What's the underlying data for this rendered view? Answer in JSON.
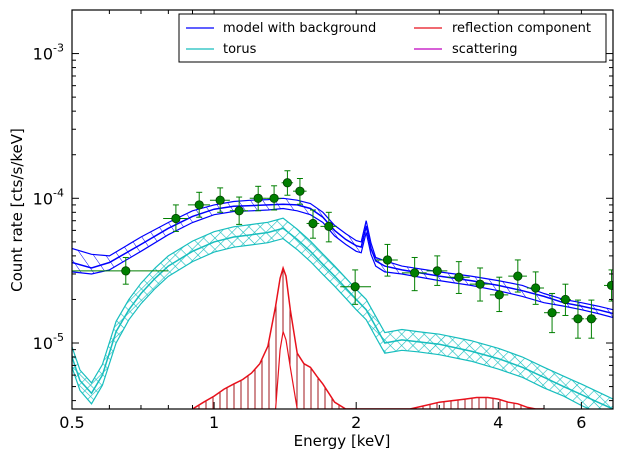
{
  "chart_data": {
    "type": "line",
    "title": "",
    "xlabel": "Energy [keV]",
    "ylabel": "Count rate [cts/s/keV]",
    "xscale": "log",
    "yscale": "log",
    "xlim": [
      0.5,
      7.0
    ],
    "ylim": [
      3.5e-06,
      0.002
    ],
    "grid": false,
    "legend_position": "top-right",
    "x_ticks": [
      {
        "value": 0.5,
        "label": "0.5"
      },
      {
        "value": 1,
        "label": "1"
      },
      {
        "value": 2,
        "label": "2"
      },
      {
        "value": 4,
        "label": "4"
      },
      {
        "value": 6,
        "label": "6"
      }
    ],
    "y_ticks": [
      {
        "value": 1e-05,
        "base": "10",
        "exp": "-5"
      },
      {
        "value": 0.0001,
        "base": "10",
        "exp": "-4"
      },
      {
        "value": 0.001,
        "base": "10",
        "exp": "-3"
      }
    ],
    "series": [
      {
        "name": "model with background",
        "color": "#0000ff",
        "hatch": "diagonal",
        "x": [
          0.5,
          0.55,
          0.6,
          0.7,
          0.8,
          0.9,
          1.0,
          1.1,
          1.2,
          1.3,
          1.4,
          1.5,
          1.6,
          1.7,
          1.8,
          1.9,
          2.0,
          2.05,
          2.1,
          2.15,
          2.2,
          2.3,
          2.5,
          3.0,
          3.5,
          4.0,
          4.5,
          5.0,
          5.5,
          6.0,
          6.5,
          7.0
        ],
        "y": [
          3.6e-05,
          3.3e-05,
          3.6e-05,
          4.8e-05,
          6.2e-05,
          7.5e-05,
          8.4e-05,
          8.8e-05,
          8.9e-05,
          9e-05,
          9.1e-05,
          9e-05,
          8.5e-05,
          7.4e-05,
          6e-05,
          5.2e-05,
          4.7e-05,
          4.6e-05,
          6.4e-05,
          4.5e-05,
          3.7e-05,
          3.4e-05,
          3.2e-05,
          2.9e-05,
          2.7e-05,
          2.5e-05,
          2.3e-05,
          2.1e-05,
          1.9e-05,
          1.8e-05,
          1.7e-05,
          1.6e-05
        ],
        "y_low": [
          3.1e-05,
          3e-05,
          3.2e-05,
          4.3e-05,
          5.6e-05,
          6.8e-05,
          7.7e-05,
          8.1e-05,
          8.2e-05,
          8.3e-05,
          8.5e-05,
          8.2e-05,
          7.7e-05,
          6.8e-05,
          5.5e-05,
          4.8e-05,
          4.3e-05,
          4.2e-05,
          5.8e-05,
          4.1e-05,
          3.4e-05,
          3.1e-05,
          3e-05,
          2.7e-05,
          2.5e-05,
          2.3e-05,
          2.1e-05,
          1.9e-05,
          1.8e-05,
          1.7e-05,
          1.6e-05,
          1.5e-05
        ],
        "y_high": [
          4.5e-05,
          4.1e-05,
          4e-05,
          5.4e-05,
          6.8e-05,
          8.2e-05,
          9e-05,
          9.5e-05,
          9.7e-05,
          9.8e-05,
          0.0001,
          9.7e-05,
          9.2e-05,
          8e-05,
          6.5e-05,
          5.7e-05,
          5.1e-05,
          5e-05,
          7e-05,
          4.9e-05,
          3.9e-05,
          3.7e-05,
          3.4e-05,
          3.1e-05,
          2.9e-05,
          2.7e-05,
          2.5e-05,
          2.2e-05,
          2e-05,
          1.9e-05,
          1.8e-05,
          1.7e-05
        ]
      },
      {
        "name": "torus",
        "color": "#17bebe",
        "hatch": "cross",
        "x": [
          0.5,
          0.52,
          0.55,
          0.58,
          0.62,
          0.66,
          0.7,
          0.75,
          0.8,
          0.9,
          1.0,
          1.1,
          1.2,
          1.3,
          1.4,
          1.5,
          1.6,
          1.7,
          1.8,
          1.9,
          2.0,
          2.1,
          2.2,
          2.3,
          2.5,
          2.7,
          3.0,
          3.5,
          4.0,
          4.5,
          5.0,
          5.5,
          6.0,
          6.5,
          7.0
        ],
        "y": [
          8e-06,
          5.5e-06,
          4.5e-06,
          6e-06,
          1.2e-05,
          1.7e-05,
          2.2e-05,
          2.8e-05,
          3.4e-05,
          4.3e-05,
          5e-05,
          5.4e-05,
          5.6e-05,
          5.8e-05,
          6.2e-05,
          5.2e-05,
          4.3e-05,
          3.5e-05,
          2.9e-05,
          2.4e-05,
          2e-05,
          1.7e-05,
          1.3e-05,
          1e-05,
          1.05e-05,
          1.02e-05,
          9.8e-06,
          8.8e-06,
          7.8e-06,
          6.8e-06,
          5.8e-06,
          5e-06,
          4.4e-06,
          3.9e-06,
          3.5e-06
        ],
        "y_low": [
          6.8e-06,
          4.7e-06,
          3.8e-06,
          5.1e-06,
          1e-05,
          1.45e-05,
          1.87e-05,
          2.38e-05,
          2.89e-05,
          3.65e-05,
          4.25e-05,
          4.59e-05,
          4.76e-05,
          4.93e-05,
          5.27e-05,
          4.42e-05,
          3.66e-05,
          2.98e-05,
          2.47e-05,
          2.04e-05,
          1.7e-05,
          1.45e-05,
          1.1e-05,
          8.5e-06,
          8.9e-06,
          8.7e-06,
          8.3e-06,
          7.5e-06,
          6.6e-06,
          5.8e-06,
          4.9e-06,
          4.3e-06,
          3.7e-06,
          3.3e-06,
          3e-06
        ],
        "y_high": [
          9.4e-06,
          6.5e-06,
          5.3e-06,
          7.1e-06,
          1.41e-05,
          2e-05,
          2.59e-05,
          3.3e-05,
          4e-05,
          5.06e-05,
          5.88e-05,
          6.35e-05,
          6.59e-05,
          6.82e-05,
          7.29e-05,
          6.12e-05,
          5.06e-05,
          4.12e-05,
          3.41e-05,
          2.82e-05,
          2.35e-05,
          2e-05,
          1.53e-05,
          1.18e-05,
          1.24e-05,
          1.2e-05,
          1.15e-05,
          1.04e-05,
          9.2e-06,
          8e-06,
          6.8e-06,
          5.9e-06,
          5.2e-06,
          4.6e-06,
          4.1e-06
        ]
      },
      {
        "name": "reflection component",
        "color": "#e8111c",
        "hatch": "vertical",
        "x": [
          0.9,
          0.95,
          1.0,
          1.05,
          1.1,
          1.15,
          1.2,
          1.25,
          1.3,
          1.35,
          1.38,
          1.4,
          1.42,
          1.45,
          1.5,
          1.55,
          1.6,
          1.65,
          1.7,
          1.75,
          1.8,
          1.9,
          2.0,
          2.1,
          2.2,
          2.6,
          2.8,
          3.0,
          3.2,
          3.4,
          3.6,
          3.8,
          4.0,
          4.2,
          4.4,
          4.6,
          4.8,
          5.0
        ],
        "y": [
          3.5e-06,
          3.9e-06,
          4.3e-06,
          4.8e-06,
          5.2e-06,
          5.6e-06,
          6.2e-06,
          7.2e-06,
          9.5e-06,
          1.8e-05,
          2.8e-05,
          3.3e-05,
          2.9e-05,
          1.7e-05,
          8.5e-06,
          7.2e-06,
          6.8e-06,
          5.9e-06,
          5.2e-06,
          4.5e-06,
          3.9e-06,
          3.5e-06,
          3.5e-06,
          3.5e-06,
          3.5e-06,
          3.5e-06,
          3.7e-06,
          3.9e-06,
          4e-06,
          4.1e-06,
          4.2e-06,
          4.2e-06,
          4.1e-06,
          3.9e-06,
          3.8e-06,
          3.6e-06,
          3.5e-06,
          3.5e-06
        ],
        "y_low": [
          3.5e-06,
          3.5e-06,
          3.5e-06,
          3.5e-06,
          3.5e-06,
          3.5e-06,
          3.5e-06,
          3.5e-06,
          3.5e-06,
          3.5e-06,
          9e-06,
          1.2e-05,
          1.05e-05,
          6.8e-06,
          3.5e-06,
          3.5e-06,
          3.5e-06,
          3.5e-06,
          3.5e-06,
          3.5e-06,
          3.5e-06,
          3.5e-06,
          3.5e-06,
          3.5e-06,
          3.5e-06,
          3.5e-06,
          3.5e-06,
          3.5e-06,
          3.5e-06,
          3.5e-06,
          3.5e-06,
          3.5e-06,
          3.5e-06,
          3.5e-06,
          3.5e-06,
          3.5e-06,
          3.5e-06,
          3.5e-06
        ]
      },
      {
        "name": "scattering",
        "color": "#bf00bf",
        "x": [],
        "y": []
      }
    ],
    "data_points": {
      "color": "#007f00",
      "points": [
        {
          "x": 0.65,
          "y": 3.15e-05,
          "xlo": 0.5,
          "xhi": 0.8,
          "ylo": 2.55e-05,
          "yhi": 3.9e-05
        },
        {
          "x": 0.83,
          "y": 7.25e-05,
          "xlo": 0.78,
          "xhi": 0.88,
          "ylo": 5.9e-05,
          "yhi": 9e-05
        },
        {
          "x": 0.93,
          "y": 9e-05,
          "xlo": 0.88,
          "xhi": 0.98,
          "ylo": 7.4e-05,
          "yhi": 0.00011
        },
        {
          "x": 1.03,
          "y": 9.7e-05,
          "xlo": 0.98,
          "xhi": 1.08,
          "ylo": 8e-05,
          "yhi": 0.000118
        },
        {
          "x": 1.13,
          "y": 8.2e-05,
          "xlo": 1.08,
          "xhi": 1.18,
          "ylo": 6.6e-05,
          "yhi": 0.000102
        },
        {
          "x": 1.24,
          "y": 0.0001,
          "xlo": 1.19,
          "xhi": 1.29,
          "ylo": 8.2e-05,
          "yhi": 0.000121
        },
        {
          "x": 1.34,
          "y": 0.0001,
          "xlo": 1.29,
          "xhi": 1.39,
          "ylo": 8.3e-05,
          "yhi": 0.000122
        },
        {
          "x": 1.43,
          "y": 0.000128,
          "xlo": 1.39,
          "xhi": 1.47,
          "ylo": 0.000105,
          "yhi": 0.000155
        },
        {
          "x": 1.52,
          "y": 0.000112,
          "xlo": 1.47,
          "xhi": 1.57,
          "ylo": 9.1e-05,
          "yhi": 0.000137
        },
        {
          "x": 1.62,
          "y": 6.7e-05,
          "xlo": 1.57,
          "xhi": 1.67,
          "ylo": 5.3e-05,
          "yhi": 8.3e-05
        },
        {
          "x": 1.75,
          "y": 6.4e-05,
          "xlo": 1.68,
          "xhi": 1.82,
          "ylo": 5e-05,
          "yhi": 8e-05
        },
        {
          "x": 1.99,
          "y": 2.45e-05,
          "xlo": 1.85,
          "xhi": 2.15,
          "ylo": 1.85e-05,
          "yhi": 3.2e-05
        },
        {
          "x": 2.33,
          "y": 3.75e-05,
          "xlo": 2.2,
          "xhi": 2.45,
          "ylo": 2.9e-05,
          "yhi": 4.8e-05
        },
        {
          "x": 2.66,
          "y": 3.05e-05,
          "xlo": 2.5,
          "xhi": 2.82,
          "ylo": 2.3e-05,
          "yhi": 3.9e-05
        },
        {
          "x": 2.97,
          "y": 3.15e-05,
          "xlo": 2.82,
          "xhi": 3.12,
          "ylo": 2.5e-05,
          "yhi": 4e-05
        },
        {
          "x": 3.3,
          "y": 2.85e-05,
          "xlo": 3.12,
          "xhi": 3.48,
          "ylo": 2.2e-05,
          "yhi": 3.65e-05
        },
        {
          "x": 3.66,
          "y": 2.55e-05,
          "xlo": 3.48,
          "xhi": 3.84,
          "ylo": 1.95e-05,
          "yhi": 3.3e-05
        },
        {
          "x": 4.02,
          "y": 2.15e-05,
          "xlo": 3.84,
          "xhi": 4.2,
          "ylo": 1.65e-05,
          "yhi": 2.85e-05
        },
        {
          "x": 4.4,
          "y": 2.9e-05,
          "xlo": 4.2,
          "xhi": 4.6,
          "ylo": 2.25e-05,
          "yhi": 3.75e-05
        },
        {
          "x": 4.8,
          "y": 2.4e-05,
          "xlo": 4.6,
          "xhi": 5.0,
          "ylo": 1.85e-05,
          "yhi": 3.1e-05
        },
        {
          "x": 5.2,
          "y": 1.62e-05,
          "xlo": 5.0,
          "xhi": 5.4,
          "ylo": 1.18e-05,
          "yhi": 2.2e-05
        },
        {
          "x": 5.55,
          "y": 2e-05,
          "xlo": 5.4,
          "xhi": 5.7,
          "ylo": 1.55e-05,
          "yhi": 2.55e-05
        },
        {
          "x": 5.9,
          "y": 1.47e-05,
          "xlo": 5.72,
          "xhi": 6.08,
          "ylo": 1.08e-05,
          "yhi": 1.98e-05
        },
        {
          "x": 6.3,
          "y": 1.47e-05,
          "xlo": 6.12,
          "xhi": 6.48,
          "ylo": 1.08e-05,
          "yhi": 1.98e-05
        },
        {
          "x": 6.95,
          "y": 2.5e-05,
          "xlo": 6.7,
          "xhi": 7.0,
          "ylo": 1.95e-05,
          "yhi": 3.2e-05
        }
      ]
    }
  }
}
